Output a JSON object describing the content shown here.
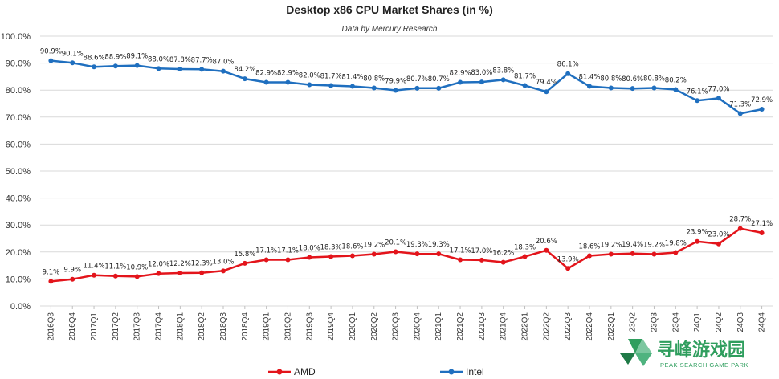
{
  "chart_data": {
    "type": "line",
    "title": "Desktop x86 CPU Market Shares (in %)",
    "subtitle": "Data by Mercury Research",
    "ylim": [
      0,
      100
    ],
    "yticks": [
      "0.0%",
      "10.0%",
      "20.0%",
      "30.0%",
      "40.0%",
      "50.0%",
      "60.0%",
      "70.0%",
      "80.0%",
      "90.0%",
      "100.0%"
    ],
    "grid": true,
    "legend_position": "bottom-center",
    "categories": [
      "2016Q3",
      "2016Q4",
      "2017Q1",
      "2017Q2",
      "2017Q3",
      "2017Q4",
      "2018Q1",
      "2018Q2",
      "2018Q3",
      "2018Q4",
      "2019Q1",
      "2019Q2",
      "2019Q3",
      "2019Q4",
      "2020Q1",
      "2020Q2",
      "2020Q3",
      "2020Q4",
      "2021Q1",
      "2021Q2",
      "2021Q3",
      "2021Q4",
      "2022Q1",
      "2022Q2",
      "2022Q3",
      "2022Q4",
      "2023Q1",
      "2023Q2",
      "2023Q3",
      "2023Q4",
      "24Q1",
      "24Q2",
      "24Q3",
      "24Q4"
    ],
    "category_labels": [
      "2016Q3",
      "2016Q4",
      "2017Q1",
      "2017Q2",
      "2017Q3",
      "2017Q4",
      "2018Q1",
      "2018Q2",
      "2018Q3",
      "2018Q4",
      "2019Q1",
      "2019Q2",
      "2019Q3",
      "2019Q4",
      "2020Q1",
      "2020Q2",
      "2020Q3",
      "2020Q4",
      "2021Q1",
      "2021Q2",
      "2021Q3",
      "2021Q4",
      "2022Q1",
      "2022Q2",
      "2022Q3",
      "2022Q4",
      "2023Q1",
      "23Q2",
      "23Q3",
      "23Q4",
      "24Q1",
      "24Q2",
      "24Q3",
      "24Q4"
    ],
    "series": [
      {
        "name": "AMD",
        "color": "#e3141b",
        "values": [
          9.1,
          9.9,
          11.4,
          11.1,
          10.9,
          12.0,
          12.2,
          12.3,
          13.0,
          15.8,
          17.1,
          17.1,
          18.0,
          18.3,
          18.6,
          19.2,
          20.1,
          19.3,
          19.3,
          17.1,
          17.0,
          16.2,
          18.3,
          20.6,
          13.9,
          18.6,
          19.2,
          19.4,
          19.2,
          19.8,
          23.9,
          23.0,
          28.7,
          27.1
        ],
        "labels": [
          "9.1%",
          "9.9%",
          "11.4%",
          "11.1%",
          "10.9%",
          "12.0%",
          "12.2%",
          "12.3%",
          "13.0%",
          "15.8%",
          "17.1%",
          "17.1%",
          "18.0%",
          "18.3%",
          "18.6%",
          "19.2%",
          "20.1%",
          "19.3%",
          "19.3%",
          "17.1%",
          "17.0%",
          "16.2%",
          "18.3%",
          "20.6%",
          "13.9%",
          "18.6%",
          "19.2%",
          "19.4%",
          "19.2%",
          "19.8%",
          "23.9%",
          "23.0%",
          "28.7%",
          "27.1%"
        ]
      },
      {
        "name": "Intel",
        "color": "#1f6fbf",
        "values": [
          90.9,
          90.1,
          88.6,
          88.9,
          89.1,
          88.0,
          87.8,
          87.7,
          87.0,
          84.2,
          82.9,
          82.9,
          82.0,
          81.7,
          81.4,
          80.8,
          79.9,
          80.7,
          80.7,
          82.9,
          83.0,
          83.8,
          81.7,
          79.4,
          86.1,
          81.4,
          80.8,
          80.6,
          80.8,
          80.2,
          76.1,
          77.0,
          71.3,
          72.9
        ],
        "labels": [
          "90.9%",
          "90.1%",
          "88.6%",
          "88.9%",
          "89.1%",
          "88.0%",
          "87.8%",
          "87.7%",
          "87.0%",
          "84.2%",
          "82.9%",
          "82.9%",
          "82.0%",
          "81.7%",
          "81.4%",
          "80.8%",
          "79.9%",
          "80.7%",
          "80.7%",
          "82.9%",
          "83.0%",
          "83.8%",
          "81.7%",
          "79.4%",
          "86.1%",
          "81.4%",
          "80.8%",
          "80.6%",
          "80.8%",
          "80.2%",
          "76.1%",
          "77.0%",
          "71.3%",
          "72.9%"
        ]
      }
    ]
  },
  "watermark": {
    "text_cn": "寻峰游戏园",
    "text_en": "PEAK SEARCH GAME PARK",
    "color": "#2f9e5e"
  }
}
